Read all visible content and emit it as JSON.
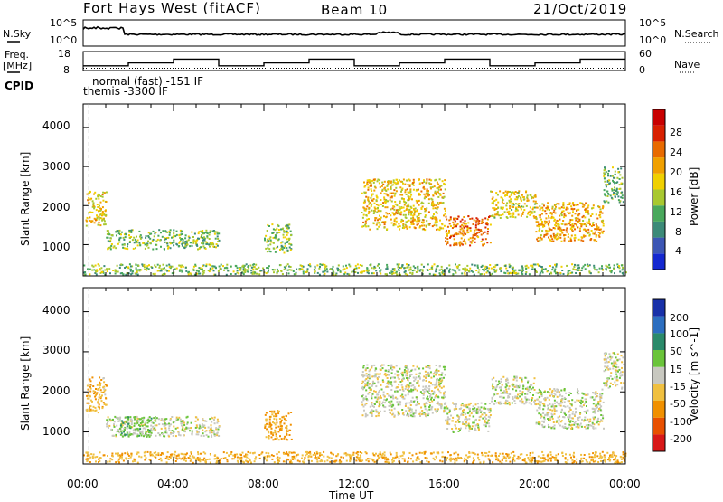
{
  "header": {
    "station": "Fort Hays West (fitACF)",
    "beam": "Beam 10",
    "date": "21/Oct/2019"
  },
  "sky_panel": {
    "left_label": "N.Sky",
    "right_label": "N.Search",
    "left_ticks": [
      "10^5",
      "10^0"
    ],
    "right_ticks": [
      "10^5",
      "10^0"
    ]
  },
  "freq_panel": {
    "left_label_1": "Freq.",
    "left_label_2": "[MHz]",
    "right_label": "Nave",
    "left_ticks": [
      "18",
      "8"
    ],
    "right_ticks": [
      "60",
      "0"
    ],
    "cpid_label": "CPID",
    "cpid_lines": [
      "normal (fast) -151 IF",
      "themis -3300 IF"
    ]
  },
  "power_panel": {
    "y_axis_label": "Slant Range [km]",
    "y_ticks": [
      "1000",
      "2000",
      "3000",
      "4000"
    ],
    "colorbar_label": "Power [dB]",
    "colorbar_ticks": [
      "4",
      "8",
      "12",
      "16",
      "20",
      "24",
      "28"
    ],
    "colorbar_colors": [
      "#1428d0",
      "#3c56b4",
      "#3c8a78",
      "#49a85c",
      "#a8c830",
      "#f0d000",
      "#f0a000",
      "#e86a00",
      "#d82000",
      "#c80000"
    ]
  },
  "velocity_panel": {
    "y_axis_label": "Slant Range [km]",
    "y_ticks": [
      "1000",
      "2000",
      "3000",
      "4000"
    ],
    "colorbar_label": "Velocity [m s^-1]",
    "colorbar_ticks": [
      "200",
      "100",
      "50",
      "15",
      "-15",
      "-50",
      "-100",
      "-200"
    ],
    "colorbar_colors": [
      "#1830a8",
      "#2c6ec0",
      "#2a8a6a",
      "#6ac43a",
      "#c8c8c0",
      "#f0c040",
      "#f09000",
      "#e85000",
      "#d81818"
    ]
  },
  "x_axis": {
    "label": "Time UT",
    "ticks": [
      "00:00",
      "04:00",
      "08:00",
      "12:00",
      "16:00",
      "20:00",
      "00:00"
    ]
  },
  "chart_data": [
    {
      "type": "heatmap",
      "name_role": "power",
      "xlim": [
        0,
        24
      ],
      "ylim": [
        200,
        4600
      ],
      "colorbar_range": [
        0,
        30
      ],
      "patches": [
        {
          "t0": 0.1,
          "t1": 1.0,
          "r0": 1500,
          "r1": 2400,
          "v": 17
        },
        {
          "t0": 1.0,
          "t1": 6.0,
          "r0": 900,
          "r1": 1400,
          "v": 12
        },
        {
          "t0": 8.0,
          "t1": 9.2,
          "r0": 800,
          "r1": 1550,
          "v": 12
        },
        {
          "t0": 12.3,
          "t1": 16.0,
          "r0": 1400,
          "r1": 2700,
          "v": 17
        },
        {
          "t0": 16.0,
          "t1": 18.0,
          "r0": 1000,
          "r1": 1750,
          "v": 22
        },
        {
          "t0": 18.0,
          "t1": 20.0,
          "r0": 1700,
          "r1": 2400,
          "v": 16
        },
        {
          "t0": 20.0,
          "t1": 23.0,
          "r0": 1100,
          "r1": 2100,
          "v": 19
        },
        {
          "t0": 0.0,
          "t1": 24.0,
          "r0": 250,
          "r1": 520,
          "v": 12
        },
        {
          "t0": 23.0,
          "t1": 23.9,
          "r0": 2100,
          "r1": 3000,
          "v": 11
        }
      ]
    },
    {
      "type": "heatmap",
      "name_role": "velocity",
      "xlim": [
        0,
        24
      ],
      "ylim": [
        200,
        4600
      ],
      "colorbar_range": [
        -250,
        250
      ],
      "patches": [
        {
          "t0": 0.1,
          "t1": 1.0,
          "r0": 1500,
          "r1": 2400,
          "v": -40
        },
        {
          "t0": 1.0,
          "t1": 6.0,
          "r0": 900,
          "r1": 1400,
          "v": 0
        },
        {
          "t0": 1.5,
          "t1": 3.0,
          "r0": 900,
          "r1": 1400,
          "v": 30
        },
        {
          "t0": 8.0,
          "t1": 9.2,
          "r0": 800,
          "r1": 1550,
          "v": -60
        },
        {
          "t0": 12.3,
          "t1": 16.0,
          "r0": 1400,
          "r1": 2700,
          "v": 0
        },
        {
          "t0": 16.0,
          "t1": 18.0,
          "r0": 1000,
          "r1": 1750,
          "v": 0
        },
        {
          "t0": 18.0,
          "t1": 20.0,
          "r0": 1700,
          "r1": 2400,
          "v": 0
        },
        {
          "t0": 20.0,
          "t1": 23.0,
          "r0": 1100,
          "r1": 2100,
          "v": 0
        },
        {
          "t0": 0.0,
          "t1": 24.0,
          "r0": 250,
          "r1": 520,
          "v": -45
        },
        {
          "t0": 23.0,
          "t1": 23.9,
          "r0": 2100,
          "r1": 3000,
          "v": 0
        }
      ]
    },
    {
      "type": "line",
      "name_role": "freq_nave",
      "xlim": [
        0,
        24
      ],
      "ylim": [
        8,
        18
      ],
      "freq_step_times": [
        0,
        2,
        4,
        6,
        8,
        10,
        12,
        14,
        16,
        18,
        20,
        22,
        24
      ],
      "freq_levels": [
        10.5,
        12,
        14,
        10.5,
        12,
        14,
        10.5,
        12,
        14,
        10.5,
        12,
        14
      ]
    }
  ]
}
